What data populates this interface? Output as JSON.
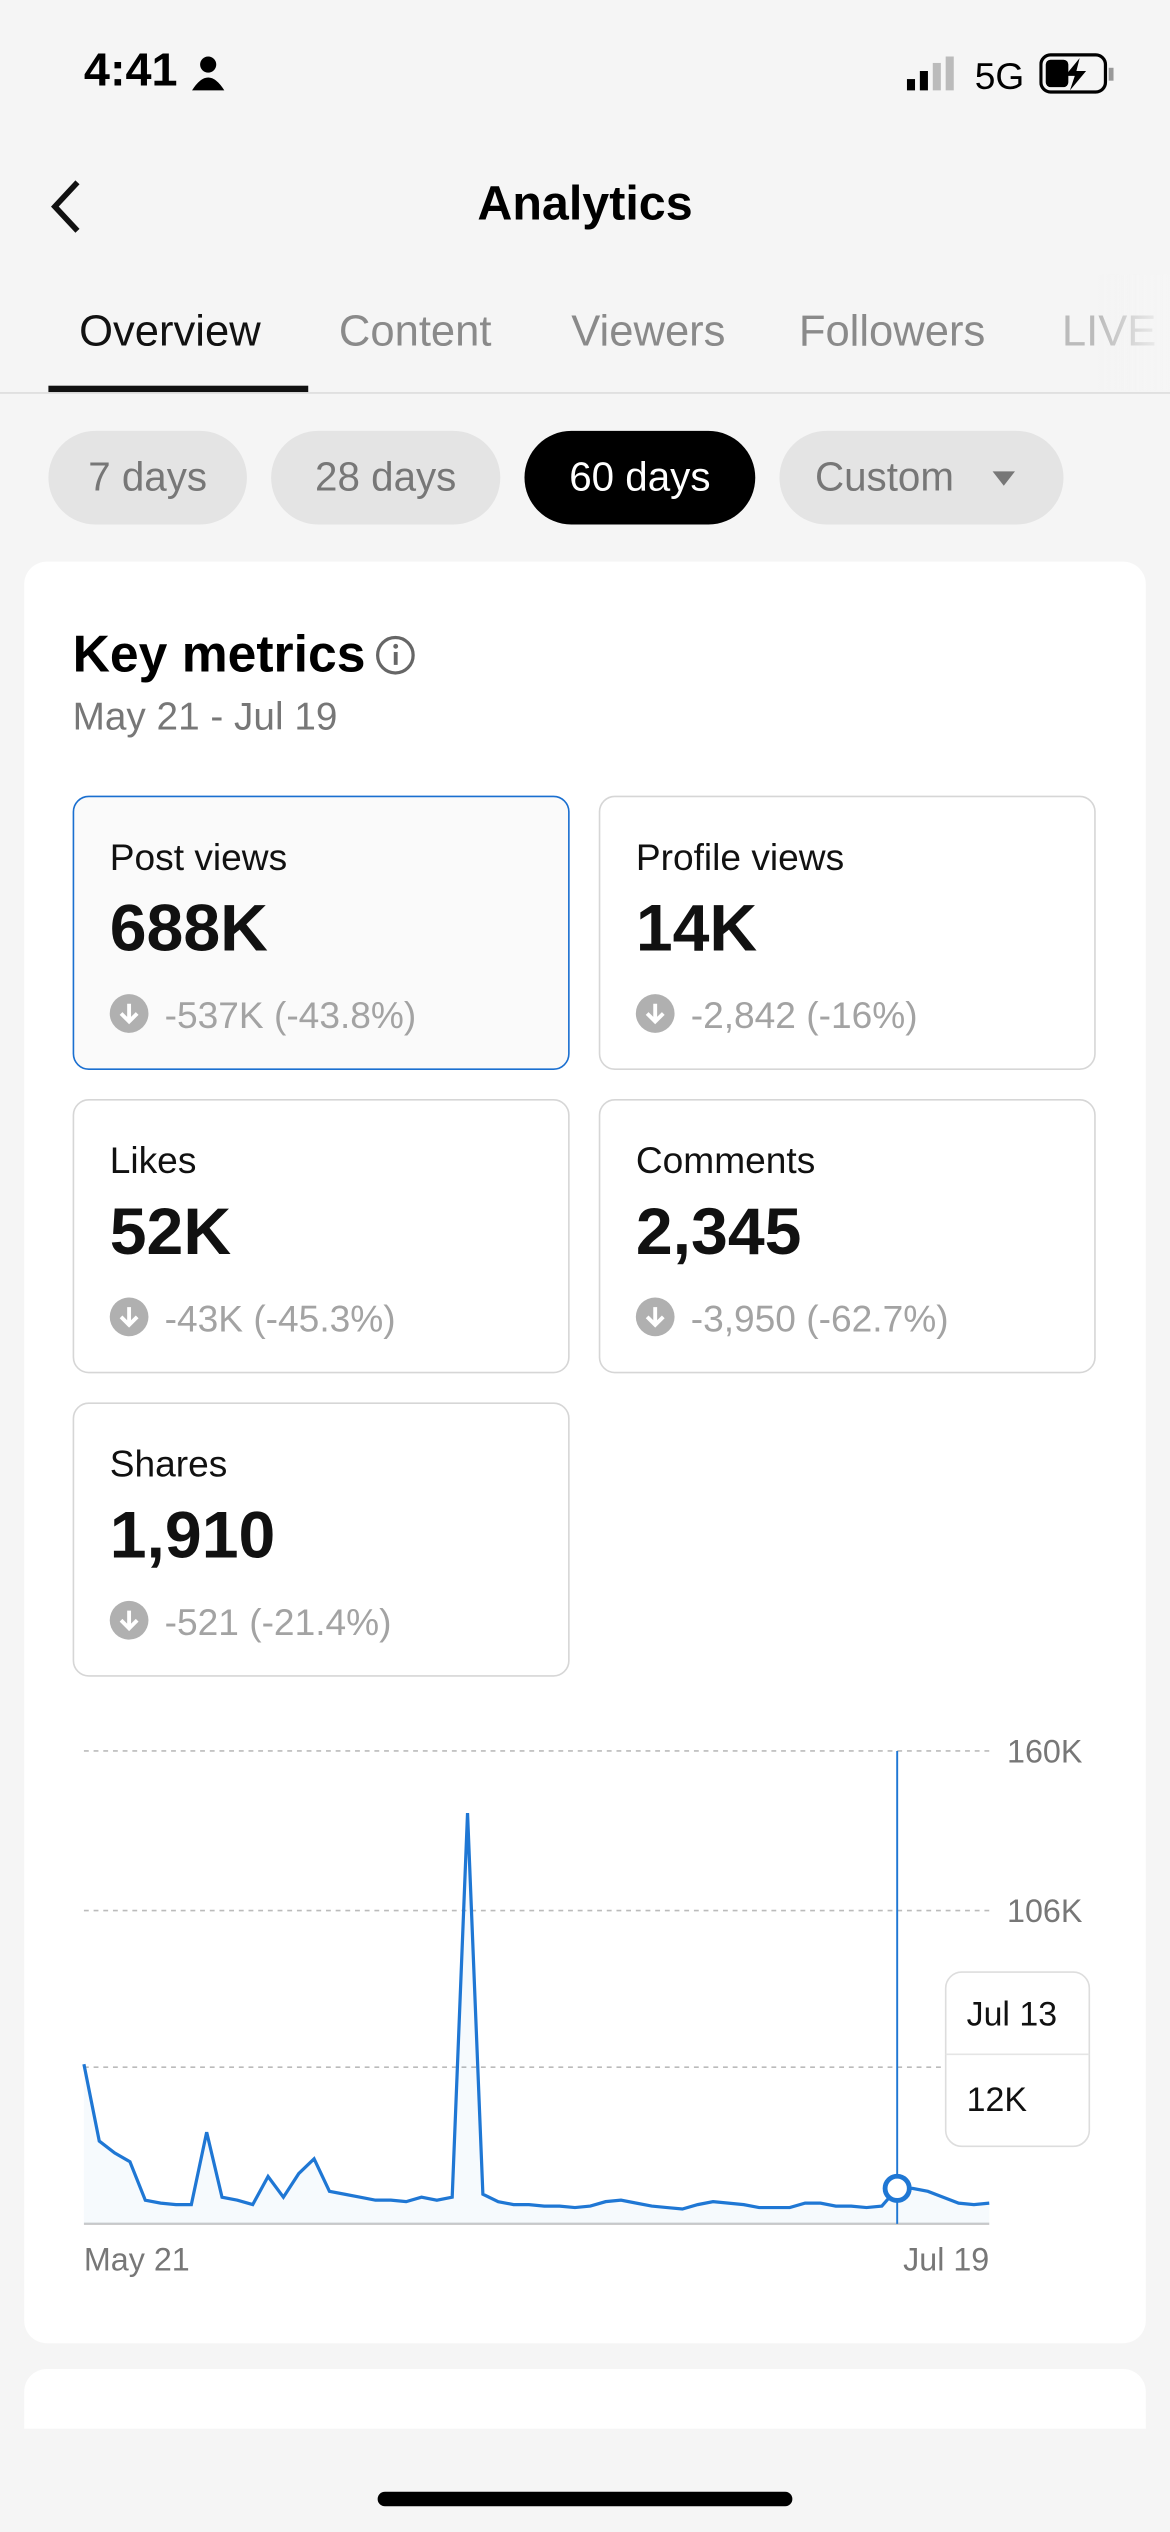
{
  "status_bar": {
    "time": "4:41",
    "network": "5G"
  },
  "header": {
    "title": "Analytics"
  },
  "tabs": [
    "Overview",
    "Content",
    "Viewers",
    "Followers",
    "LIVE"
  ],
  "filters": [
    "7 days",
    "28 days",
    "60 days",
    "Custom"
  ],
  "metrics": {
    "title": "Key metrics",
    "date_range": "May 21 - Jul 19",
    "cards": [
      {
        "label": "Post views",
        "value": "688K",
        "change": "-537K (-43.8%)"
      },
      {
        "label": "Profile views",
        "value": "14K",
        "change": "-2,842 (-16%)"
      },
      {
        "label": "Likes",
        "value": "52K",
        "change": "-43K (-45.3%)"
      },
      {
        "label": "Comments",
        "value": "2,345",
        "change": "-3,950 (-62.7%)"
      },
      {
        "label": "Shares",
        "value": "1,910",
        "change": "-521 (-21.4%)"
      }
    ]
  },
  "chart_data": {
    "type": "line",
    "color": "#1f77d4",
    "categories": [
      "May 21",
      null,
      null,
      null,
      null,
      null,
      null,
      null,
      null,
      null,
      null,
      null,
      null,
      null,
      null,
      null,
      null,
      null,
      null,
      null,
      null,
      null,
      null,
      null,
      null,
      null,
      null,
      null,
      null,
      null,
      null,
      null,
      null,
      null,
      null,
      null,
      null,
      null,
      null,
      null,
      null,
      null,
      null,
      null,
      null,
      null,
      null,
      null,
      null,
      null,
      null,
      null,
      null,
      "Jul 13",
      null,
      null,
      null,
      null,
      null,
      "Jul 19"
    ],
    "values": [
      54000,
      28000,
      24000,
      21000,
      8000,
      7000,
      6500,
      6500,
      31000,
      9000,
      8000,
      6500,
      16000,
      9000,
      17000,
      22000,
      11000,
      10000,
      9000,
      8000,
      8000,
      7500,
      9000,
      8000,
      9000,
      139000,
      10000,
      7500,
      6500,
      6500,
      6000,
      6000,
      5500,
      6000,
      7500,
      8000,
      7000,
      6000,
      5500,
      5000,
      6500,
      7500,
      7000,
      6500,
      5500,
      5500,
      5500,
      7000,
      7000,
      6000,
      6000,
      5500,
      6000,
      12000,
      12000,
      11000,
      9000,
      7000,
      6500,
      7000
    ],
    "value_labels": [
      null,
      null,
      null,
      null,
      null,
      null,
      null,
      null,
      null,
      null,
      null,
      null,
      null,
      null,
      null,
      null,
      null,
      null,
      null,
      null,
      null,
      null,
      null,
      null,
      null,
      null,
      null,
      null,
      null,
      null,
      null,
      null,
      null,
      null,
      null,
      null,
      null,
      null,
      null,
      null,
      null,
      null,
      null,
      null,
      null,
      null,
      null,
      null,
      null,
      null,
      null,
      null,
      null,
      "12K",
      null,
      null,
      null,
      null,
      null,
      null
    ],
    "ylim": [
      0,
      160000
    ],
    "yticks": [
      {
        "value": 160000,
        "label": "160K"
      },
      {
        "value": 106000,
        "label": "106K"
      },
      {
        "value": 53000,
        "label": null
      }
    ],
    "grid": true
  }
}
